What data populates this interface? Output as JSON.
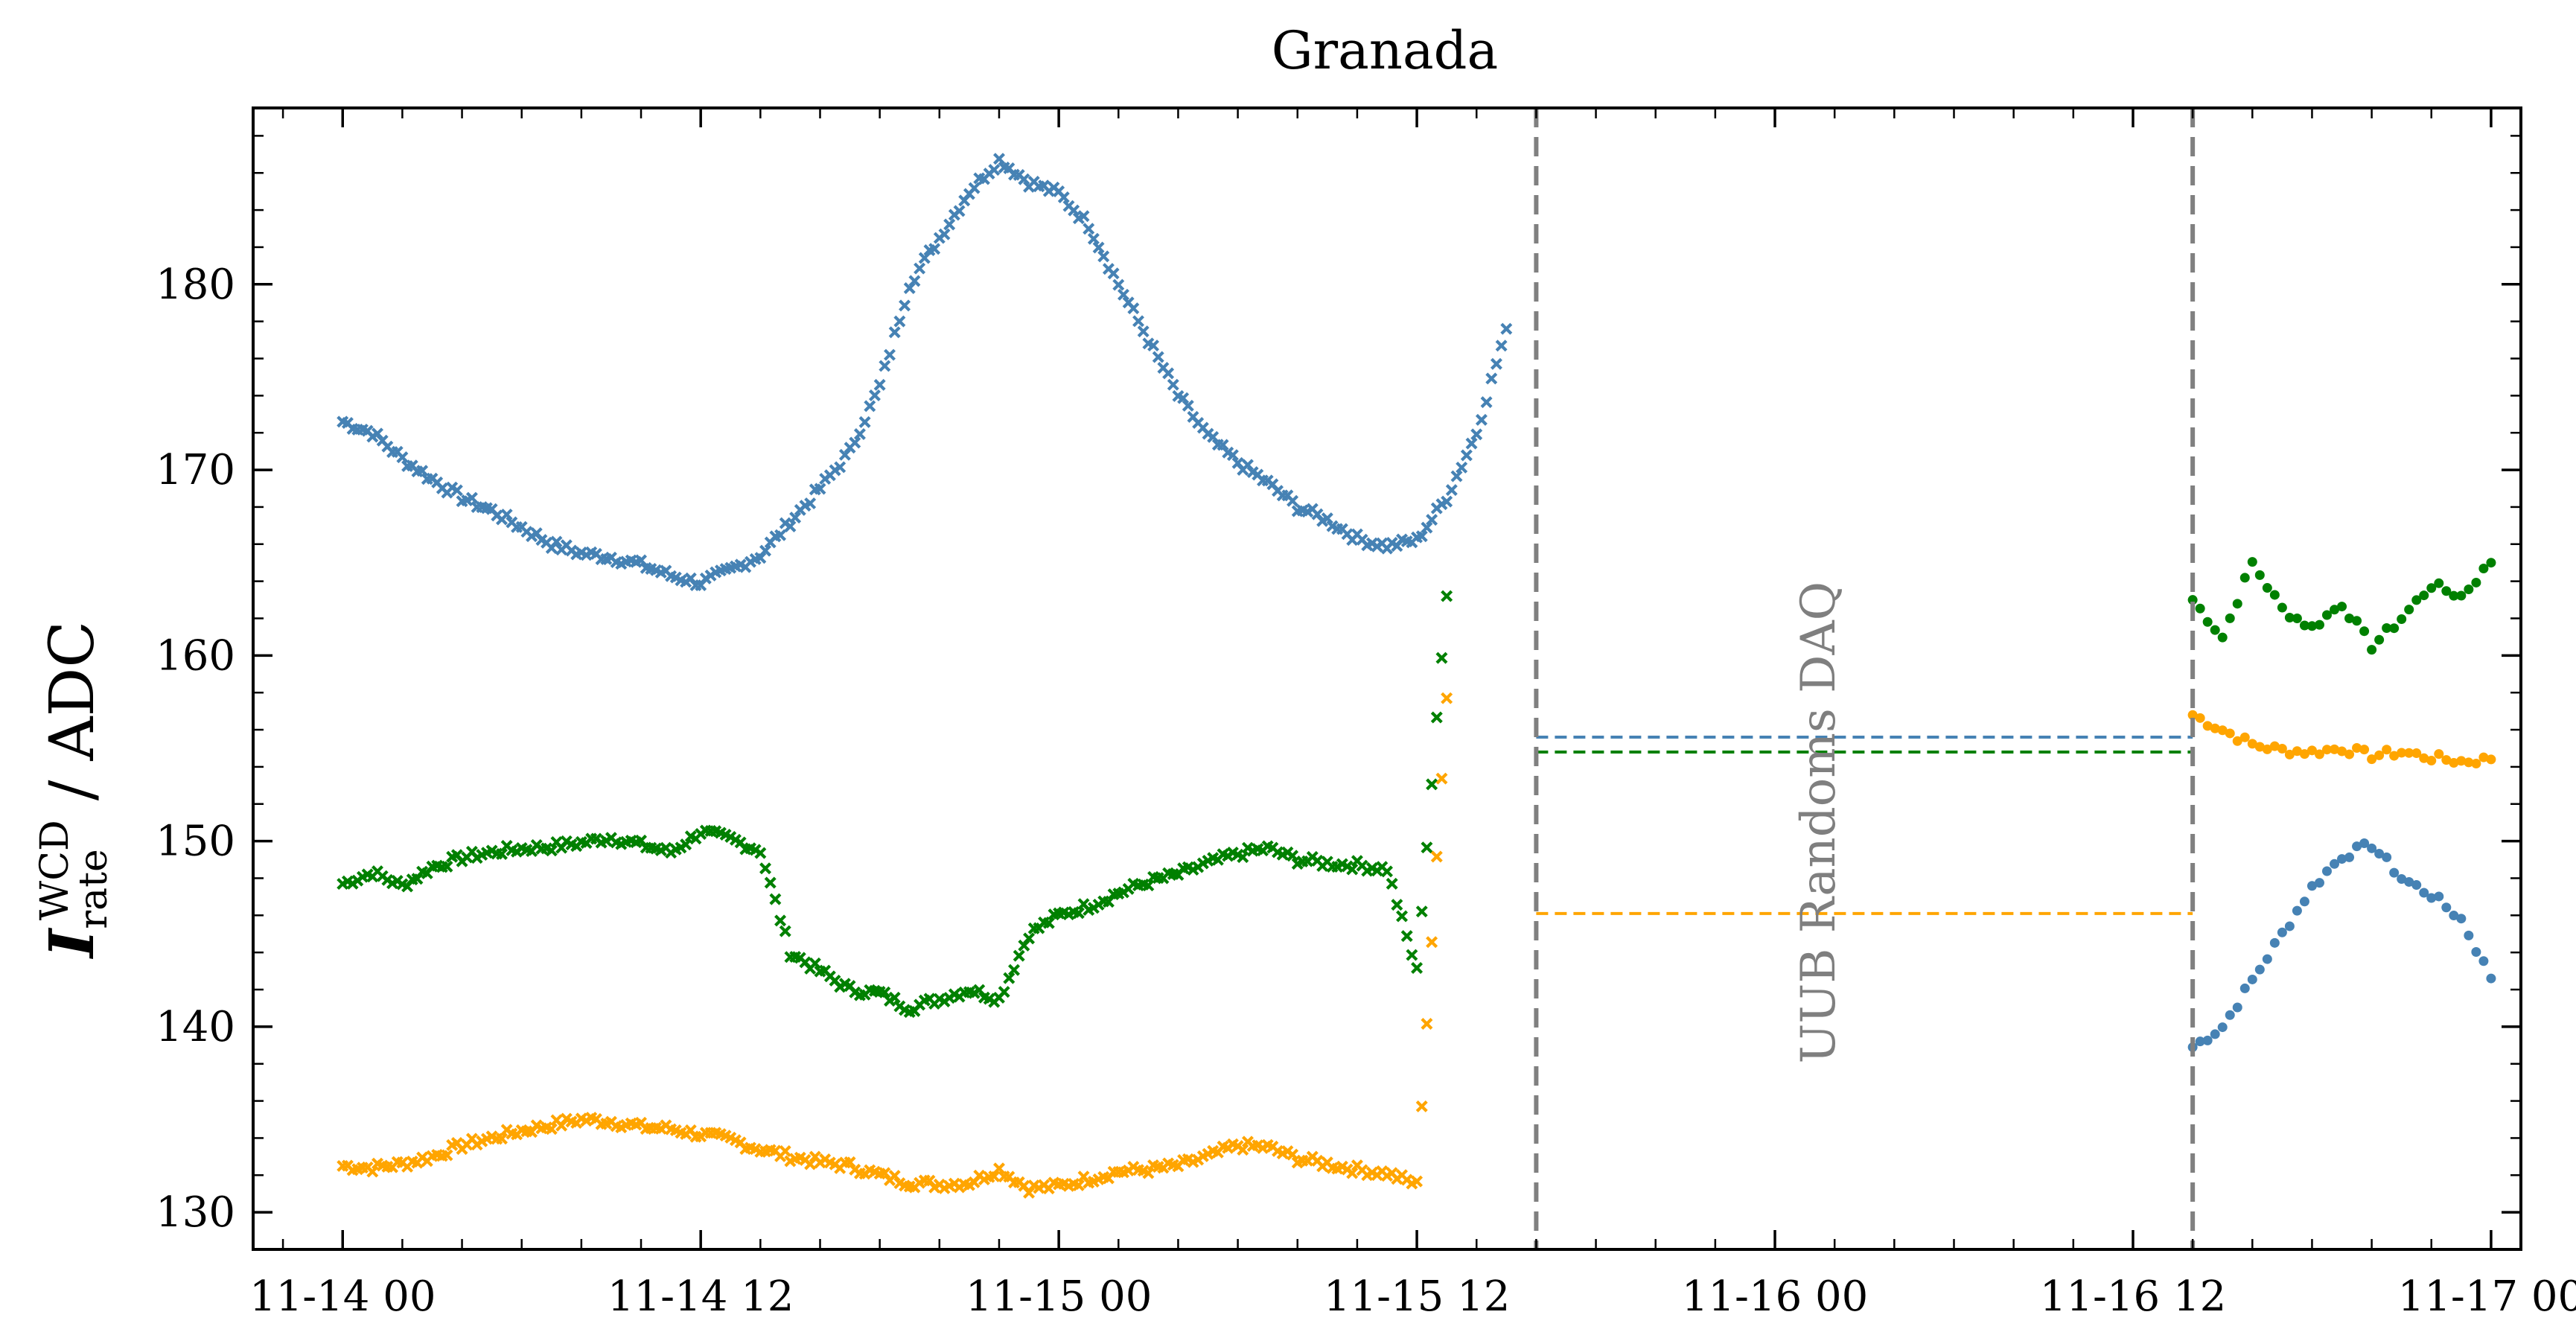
{
  "chart_data": {
    "type": "scatter",
    "title": "Granada",
    "ylabel": {
      "symbol": "I",
      "subscript": "rate",
      "superscript": "WCD",
      "unit": "/ ADC"
    },
    "xlabel": "",
    "x_axis": {
      "type": "datetime",
      "range": [
        "11-13 21:00",
        "11-17 01:00"
      ],
      "tick_labels": [
        "11-14 00",
        "11-14 12",
        "11-15 00",
        "11-15 12",
        "11-16 00",
        "11-16 12",
        "11-17 00"
      ]
    },
    "y_axis": {
      "range": [
        128,
        189.5
      ],
      "ticks": [
        130,
        140,
        150,
        160,
        170,
        180
      ]
    },
    "grid": false,
    "colors": {
      "blue": "#4682b4",
      "green": "#008000",
      "orange": "#ffa500",
      "gray": "#808080"
    },
    "annotation": {
      "text": "UUB Randoms DAQ",
      "x": "11-16 02:00",
      "y": 151,
      "rotation": -90
    },
    "vlines": [
      {
        "x": "11-15 16:00",
        "color": "#808080",
        "style": "dashed"
      },
      {
        "x": "11-16 14:00",
        "color": "#808080",
        "style": "dashed"
      }
    ],
    "hlines": [
      {
        "y": 155.6,
        "x0": "11-15 16:00",
        "x1": "11-16 14:00",
        "color": "#4682b4",
        "style": "dashed"
      },
      {
        "y": 154.8,
        "x0": "11-15 16:00",
        "x1": "11-16 14:00",
        "color": "#008000",
        "style": "dashed"
      },
      {
        "y": 146.1,
        "x0": "11-15 16:00",
        "x1": "11-16 14:00",
        "color": "#ffa500",
        "style": "dashed"
      }
    ],
    "series": [
      {
        "color": "#4682b4",
        "marker": "x",
        "points": [
          [
            "11-14 00:00",
            172.6
          ],
          [
            "11-14 01:00",
            172.0
          ],
          [
            "11-14 02:00",
            170.6
          ],
          [
            "11-14 03:00",
            169.5
          ],
          [
            "11-14 04:00",
            168.5
          ],
          [
            "11-14 05:00",
            167.8
          ],
          [
            "11-14 06:00",
            166.9
          ],
          [
            "11-14 07:00",
            166.0
          ],
          [
            "11-14 08:00",
            165.5
          ],
          [
            "11-14 09:00",
            165.3
          ],
          [
            "11-14 10:00",
            164.9
          ],
          [
            "11-14 11:00",
            164.3
          ],
          [
            "11-14 12:00",
            163.9
          ],
          [
            "11-14 13:00",
            164.6
          ],
          [
            "11-14 14:00",
            165.4
          ],
          [
            "11-14 15:00",
            167.2
          ],
          [
            "11-14 16:00",
            169.0
          ],
          [
            "11-14 17:00",
            171.0
          ],
          [
            "11-14 18:00",
            174.5
          ],
          [
            "11-14 19:00",
            180.0
          ],
          [
            "11-14 20:00",
            182.5
          ],
          [
            "11-14 21:00",
            185.0
          ],
          [
            "11-14 22:00",
            186.7
          ],
          [
            "11-14 23:00",
            185.5
          ],
          [
            "11-15 00:00",
            184.9
          ],
          [
            "11-15 01:00",
            183.2
          ],
          [
            "11-15 02:00",
            180.0
          ],
          [
            "11-15 03:00",
            177.0
          ],
          [
            "11-15 04:00",
            174.0
          ],
          [
            "11-15 05:00",
            171.8
          ],
          [
            "11-15 06:00",
            170.4
          ],
          [
            "11-15 07:00",
            169.3
          ],
          [
            "11-15 08:00",
            168.0
          ],
          [
            "11-15 09:00",
            167.3
          ],
          [
            "11-15 10:00",
            166.3
          ],
          [
            "11-15 11:00",
            165.9
          ],
          [
            "11-15 12:00",
            166.2
          ],
          [
            "11-15 13:00",
            168.5
          ],
          [
            "11-15 14:00",
            172.0
          ],
          [
            "11-15 15:00",
            177.6
          ]
        ]
      },
      {
        "color": "#4682b4",
        "marker": "dot",
        "points": [
          [
            "11-16 14:00",
            138.9
          ],
          [
            "11-16 15:00",
            140.0
          ],
          [
            "11-16 16:00",
            142.5
          ],
          [
            "11-16 17:00",
            145.0
          ],
          [
            "11-16 18:00",
            147.5
          ],
          [
            "11-16 19:00",
            149.2
          ],
          [
            "11-16 20:00",
            149.8
          ],
          [
            "11-16 21:00",
            148.0
          ],
          [
            "11-16 22:00",
            147.1
          ],
          [
            "11-16 23:00",
            145.8
          ],
          [
            "11-17 00:00",
            142.6
          ]
        ]
      },
      {
        "color": "#008000",
        "marker": "x",
        "points": [
          [
            "11-14 00:00",
            147.7
          ],
          [
            "11-14 01:00",
            148.3
          ],
          [
            "11-14 02:00",
            147.6
          ],
          [
            "11-14 03:00",
            148.6
          ],
          [
            "11-14 04:00",
            149.1
          ],
          [
            "11-14 05:00",
            149.4
          ],
          [
            "11-14 06:00",
            149.6
          ],
          [
            "11-14 07:00",
            149.7
          ],
          [
            "11-14 08:00",
            149.9
          ],
          [
            "11-14 09:00",
            150.2
          ],
          [
            "11-14 10:00",
            149.8
          ],
          [
            "11-14 11:00",
            149.4
          ],
          [
            "11-14 12:00",
            150.5
          ],
          [
            "11-14 13:00",
            150.1
          ],
          [
            "11-14 14:00",
            149.5
          ],
          [
            "11-14 15:00",
            144.0
          ],
          [
            "11-14 16:00",
            143.0
          ],
          [
            "11-14 17:00",
            142.0
          ],
          [
            "11-14 18:00",
            141.8
          ],
          [
            "11-14 19:00",
            141.0
          ],
          [
            "11-14 20:00",
            141.5
          ],
          [
            "11-14 21:00",
            142.0
          ],
          [
            "11-14 22:00",
            141.5
          ],
          [
            "11-14 23:00",
            145.0
          ],
          [
            "11-15 00:00",
            146.0
          ],
          [
            "11-15 01:00",
            146.5
          ],
          [
            "11-15 02:00",
            147.2
          ],
          [
            "11-15 03:00",
            147.8
          ],
          [
            "11-15 04:00",
            148.2
          ],
          [
            "11-15 05:00",
            148.8
          ],
          [
            "11-15 06:00",
            149.3
          ],
          [
            "11-15 07:00",
            149.6
          ],
          [
            "11-15 08:00",
            149.0
          ],
          [
            "11-15 09:00",
            148.8
          ],
          [
            "11-15 10:00",
            148.7
          ],
          [
            "11-15 11:00",
            148.5
          ],
          [
            "11-15 12:00",
            143.0
          ],
          [
            "11-15 13:00",
            163.2
          ]
        ]
      },
      {
        "color": "#008000",
        "marker": "dot",
        "points": [
          [
            "11-16 14:00",
            163.0
          ],
          [
            "11-16 15:00",
            161.0
          ],
          [
            "11-16 16:00",
            165.0
          ],
          [
            "11-16 17:00",
            162.5
          ],
          [
            "11-16 18:00",
            161.5
          ],
          [
            "11-16 19:00",
            162.8
          ],
          [
            "11-16 20:00",
            160.5
          ],
          [
            "11-16 21:00",
            162.0
          ],
          [
            "11-16 22:00",
            163.8
          ],
          [
            "11-16 23:00",
            163.2
          ],
          [
            "11-17 00:00",
            165.0
          ]
        ]
      },
      {
        "color": "#ffa500",
        "marker": "x",
        "points": [
          [
            "11-14 00:00",
            132.5
          ],
          [
            "11-14 01:00",
            132.4
          ],
          [
            "11-14 02:00",
            132.6
          ],
          [
            "11-14 03:00",
            133.0
          ],
          [
            "11-14 04:00",
            133.6
          ],
          [
            "11-14 05:00",
            134.0
          ],
          [
            "11-14 06:00",
            134.4
          ],
          [
            "11-14 07:00",
            134.7
          ],
          [
            "11-14 08:00",
            135.0
          ],
          [
            "11-14 09:00",
            134.9
          ],
          [
            "11-14 10:00",
            134.6
          ],
          [
            "11-14 11:00",
            134.5
          ],
          [
            "11-14 12:00",
            134.2
          ],
          [
            "11-14 13:00",
            133.9
          ],
          [
            "11-14 14:00",
            133.4
          ],
          [
            "11-14 15:00",
            133.0
          ],
          [
            "11-14 16:00",
            132.7
          ],
          [
            "11-14 17:00",
            132.5
          ],
          [
            "11-14 18:00",
            132.0
          ],
          [
            "11-14 19:00",
            131.6
          ],
          [
            "11-14 20:00",
            131.5
          ],
          [
            "11-14 21:00",
            131.6
          ],
          [
            "11-14 22:00",
            132.3
          ],
          [
            "11-14 23:00",
            131.3
          ],
          [
            "11-15 00:00",
            131.4
          ],
          [
            "11-15 01:00",
            131.8
          ],
          [
            "11-15 02:00",
            132.2
          ],
          [
            "11-15 03:00",
            132.3
          ],
          [
            "11-15 04:00",
            132.5
          ],
          [
            "11-15 05:00",
            133.0
          ],
          [
            "11-15 06:00",
            133.6
          ],
          [
            "11-15 07:00",
            133.5
          ],
          [
            "11-15 08:00",
            132.9
          ],
          [
            "11-15 09:00",
            132.6
          ],
          [
            "11-15 10:00",
            132.3
          ],
          [
            "11-15 11:00",
            132.1
          ],
          [
            "11-15 12:00",
            131.5
          ],
          [
            "11-15 13:00",
            157.7
          ]
        ]
      },
      {
        "color": "#ffa500",
        "marker": "dot",
        "points": [
          [
            "11-16 14:00",
            156.8
          ],
          [
            "11-16 15:00",
            156.0
          ],
          [
            "11-16 16:00",
            155.2
          ],
          [
            "11-16 17:00",
            154.9
          ],
          [
            "11-16 18:00",
            154.8
          ],
          [
            "11-16 19:00",
            155.0
          ],
          [
            "11-16 20:00",
            154.6
          ],
          [
            "11-16 21:00",
            154.8
          ],
          [
            "11-16 22:00",
            154.5
          ],
          [
            "11-16 23:00",
            154.3
          ],
          [
            "11-17 00:00",
            154.4
          ]
        ]
      }
    ]
  }
}
